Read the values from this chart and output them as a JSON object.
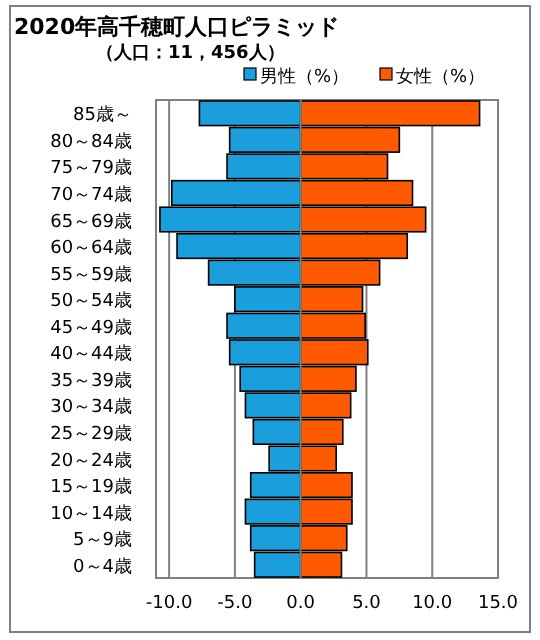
{
  "chart_data": {
    "type": "bar",
    "orientation": "horizontal",
    "title": "2020年高千穂町人口ピラミッド",
    "subtitle": "（人口：11，456人）",
    "categories": [
      "85歳～",
      "80～84歳",
      "75～79歳",
      "70～74歳",
      "65～69歳",
      "60～64歳",
      "55～59歳",
      "50～54歳",
      "45～49歳",
      "40～44歳",
      "35～39歳",
      "30～34歳",
      "25～29歳",
      "20～24歳",
      "15～19歳",
      "10～14歳",
      "5～9歳",
      "0～4歳"
    ],
    "series": [
      {
        "name": "男性（%）",
        "color": "#1a9fdc",
        "values": [
          -7.7,
          -5.4,
          -5.6,
          -9.8,
          -10.7,
          -9.4,
          -7.0,
          -5.0,
          -5.6,
          -5.4,
          -4.6,
          -4.2,
          -3.6,
          -2.4,
          -3.8,
          -4.2,
          -3.8,
          -3.5
        ]
      },
      {
        "name": "女性（%）",
        "color": "#ff5a00",
        "values": [
          13.6,
          7.5,
          6.6,
          8.5,
          9.5,
          8.1,
          6.0,
          4.7,
          4.9,
          5.1,
          4.2,
          3.8,
          3.2,
          2.7,
          3.9,
          3.9,
          3.5,
          3.1
        ]
      }
    ],
    "xlim": [
      -11,
      15
    ],
    "xticks": [
      {
        "value": -10,
        "label": "-10.0"
      },
      {
        "value": -5,
        "label": "-5.0"
      },
      {
        "value": 0,
        "label": "0.0"
      },
      {
        "value": 5,
        "label": "5.0"
      },
      {
        "value": 10,
        "label": "10.0"
      },
      {
        "value": 15,
        "label": "15.0"
      }
    ],
    "grid": "x",
    "stacked": true,
    "legend": "top right"
  }
}
